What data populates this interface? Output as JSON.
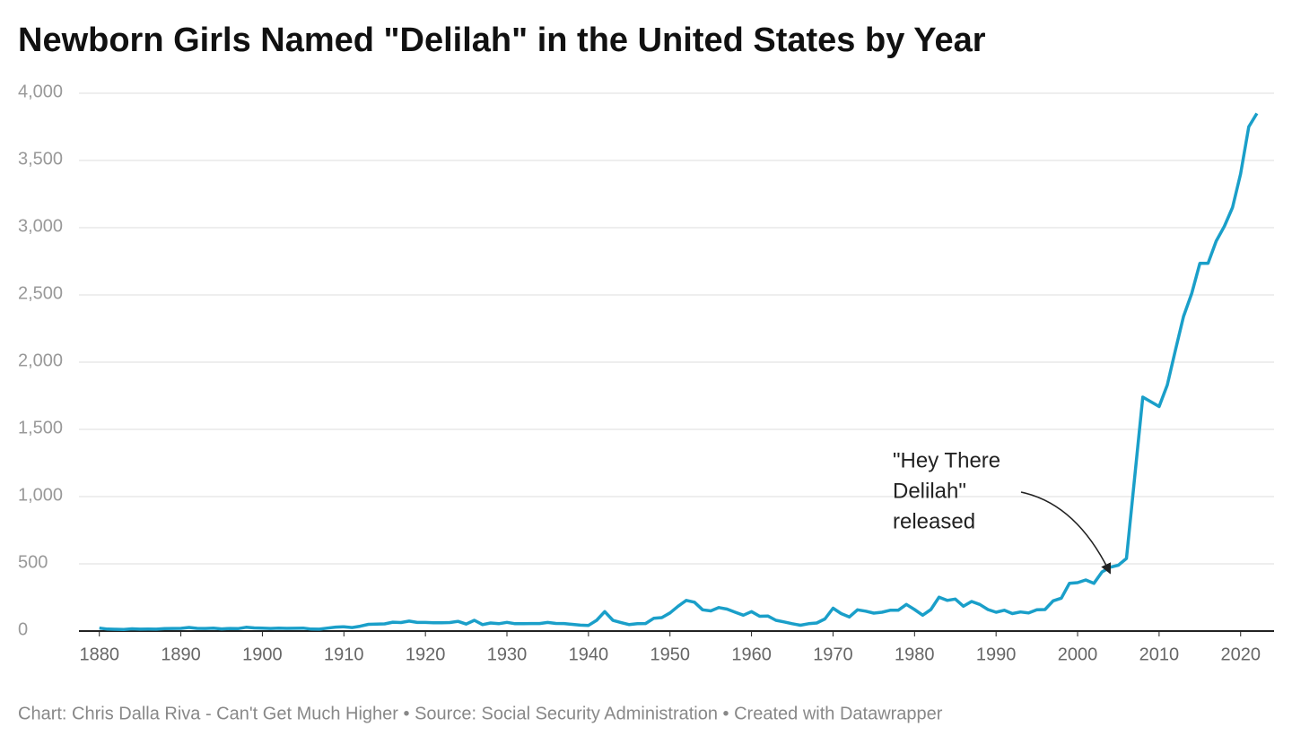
{
  "chart_data": {
    "type": "line",
    "title": "Newborn Girls Named \"Delilah\" in the United States by Year",
    "footer": "Chart: Chris Dalla Riva - Can't Get Much Higher • Source: Social Security Administration • Created with Datawrapper",
    "annotation": {
      "lines": [
        "\"Hey There",
        "Delilah\"",
        "released"
      ],
      "x": 2004,
      "y": 590
    },
    "x": [
      1880,
      1881,
      1882,
      1883,
      1884,
      1885,
      1886,
      1887,
      1888,
      1889,
      1890,
      1891,
      1892,
      1893,
      1894,
      1895,
      1896,
      1897,
      1898,
      1899,
      1900,
      1901,
      1902,
      1903,
      1904,
      1905,
      1906,
      1907,
      1908,
      1909,
      1910,
      1911,
      1912,
      1913,
      1914,
      1915,
      1916,
      1917,
      1918,
      1919,
      1920,
      1921,
      1922,
      1923,
      1924,
      1925,
      1926,
      1927,
      1928,
      1929,
      1930,
      1931,
      1932,
      1933,
      1934,
      1935,
      1936,
      1937,
      1938,
      1939,
      1940,
      1941,
      1942,
      1943,
      1944,
      1945,
      1946,
      1947,
      1948,
      1949,
      1950,
      1951,
      1952,
      1953,
      1954,
      1955,
      1956,
      1957,
      1958,
      1959,
      1960,
      1961,
      1962,
      1963,
      1964,
      1965,
      1966,
      1967,
      1968,
      1969,
      1970,
      1971,
      1972,
      1973,
      1974,
      1975,
      1976,
      1977,
      1978,
      1979,
      1980,
      1981,
      1982,
      1983,
      1984,
      1985,
      1986,
      1987,
      1988,
      1989,
      1990,
      1991,
      1992,
      1993,
      1994,
      1995,
      1996,
      1997,
      1998,
      1999,
      2000,
      2001,
      2002,
      2003,
      2004,
      2005,
      2006,
      2007,
      2008,
      2009,
      2010,
      2011,
      2012,
      2013,
      2014,
      2015,
      2016,
      2017,
      2018,
      2019,
      2020,
      2021,
      2022
    ],
    "series": [
      {
        "name": "Delilah",
        "color": "#1a9fc9",
        "values": [
          22,
          15,
          13,
          12,
          17,
          14,
          15,
          14,
          18,
          19,
          20,
          27,
          20,
          19,
          22,
          16,
          19,
          18,
          28,
          23,
          22,
          19,
          22,
          20,
          21,
          22,
          15,
          14,
          22,
          29,
          32,
          26,
          36,
          50,
          52,
          53,
          66,
          63,
          74,
          64,
          64,
          62,
          62,
          63,
          72,
          52,
          80,
          48,
          60,
          55,
          65,
          55,
          55,
          56,
          56,
          64,
          57,
          56,
          50,
          44,
          42,
          80,
          145,
          80,
          63,
          48,
          55,
          56,
          95,
          100,
          135,
          185,
          228,
          215,
          158,
          150,
          175,
          163,
          140,
          118,
          145,
          110,
          112,
          80,
          68,
          55,
          43,
          55,
          60,
          90,
          170,
          130,
          105,
          158,
          148,
          133,
          140,
          155,
          155,
          198,
          160,
          118,
          160,
          252,
          228,
          238,
          185,
          220,
          198,
          160,
          140,
          155,
          130,
          142,
          135,
          158,
          160,
          225,
          245,
          355,
          360,
          380,
          355,
          440,
          475,
          490,
          540,
          1140,
          1740,
          1705,
          1670,
          1830,
          2090,
          2340,
          2510,
          2735,
          2735,
          2900,
          3010,
          3150,
          3400,
          3750,
          3850
        ]
      }
    ],
    "xlim": [
      1877.5,
      2024.1
    ],
    "xticks": [
      1880,
      1890,
      1900,
      1910,
      1920,
      1930,
      1940,
      1950,
      1960,
      1970,
      1980,
      1990,
      2000,
      2010,
      2020
    ],
    "ylim": [
      0,
      4000
    ],
    "yticks": [
      0,
      500,
      {
        "value": 1000,
        "label": "1,000"
      },
      {
        "value": 1500,
        "label": "1,500"
      },
      {
        "value": 2000,
        "label": "2,000"
      },
      {
        "value": 2500,
        "label": "2,500"
      },
      {
        "value": 3000,
        "label": "3,000"
      },
      {
        "value": 3500,
        "label": "3,500"
      },
      {
        "value": 4000,
        "label": "4,000"
      }
    ],
    "grid": true
  }
}
